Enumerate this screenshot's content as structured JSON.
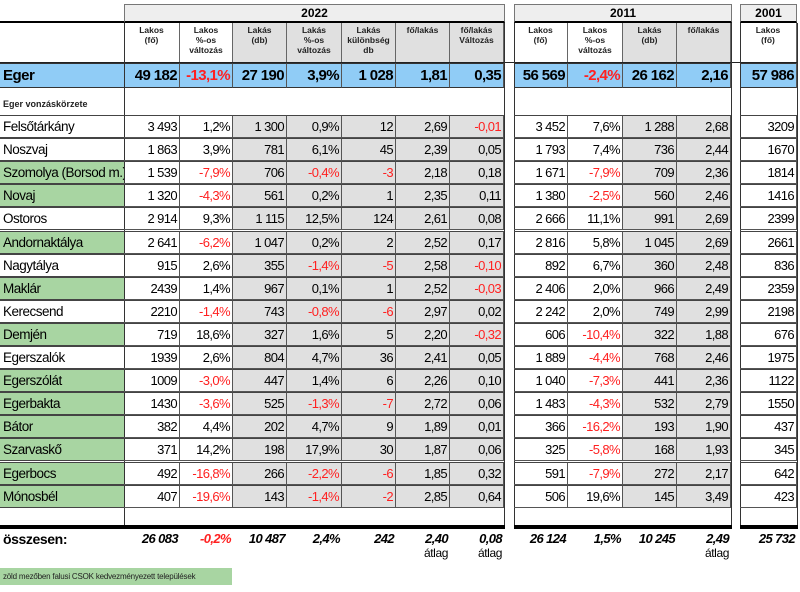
{
  "title_years": {
    "y2022": "2022",
    "y2011": "2011",
    "y2001": "2001"
  },
  "headers_2022": [
    "Lakos\n(fő)",
    "Lakos\n%-os\nváltozás",
    "Lakás\n(db)",
    "Lakás\n%-os\nváltozás",
    "Lakás\nkülönbség\ndb",
    "fő/lakás",
    "fő/lakás\nVáltozás"
  ],
  "headers_2011": [
    "Lakos\n(fő)",
    "Lakos\n%-os\nváltozás",
    "Lakás\n(db)",
    "fő/lakás"
  ],
  "headers_2001": [
    "Lakos\n(fő)"
  ],
  "eger": {
    "name": "Eger",
    "v2022": [
      "49  182",
      "-13,1%",
      "27  190",
      "3,9%",
      "1  028",
      "1,81",
      "0,35"
    ],
    "v2011": [
      "56  569",
      "-2,4%",
      "26  162",
      "2,16"
    ],
    "v2001": [
      "57  986"
    ]
  },
  "section_label": "Eger vonzáskörzete",
  "rows": [
    {
      "name": "Felsőtárkány",
      "green": false,
      "v2022": [
        "3 493",
        "1,2%",
        "1 300",
        "0,9%",
        "12",
        "2,69",
        "-0,01"
      ],
      "v2011": [
        "3 452",
        "7,6%",
        "1 288",
        "2,68"
      ],
      "v2001": [
        "3209"
      ]
    },
    {
      "name": "Noszvaj",
      "green": false,
      "v2022": [
        "1 863",
        "3,9%",
        "781",
        "6,1%",
        "45",
        "2,39",
        "0,05"
      ],
      "v2011": [
        "1 793",
        "7,4%",
        "736",
        "2,44"
      ],
      "v2001": [
        "1670"
      ]
    },
    {
      "name": "Szomolya (Borsod m.)",
      "green": true,
      "v2022": [
        "1 539",
        "-7,9%",
        "706",
        "-0,4%",
        "-3",
        "2,18",
        "0,18"
      ],
      "v2011": [
        "1 671",
        "-7,9%",
        "709",
        "2,36"
      ],
      "v2001": [
        "1814"
      ]
    },
    {
      "name": "Novaj",
      "green": true,
      "v2022": [
        "1 320",
        "-4,3%",
        "561",
        "0,2%",
        "1",
        "2,35",
        "0,11"
      ],
      "v2011": [
        "1 380",
        "-2,5%",
        "560",
        "2,46"
      ],
      "v2001": [
        "1416"
      ]
    },
    {
      "name": "Ostoros",
      "green": false,
      "v2022": [
        "2 914",
        "9,3%",
        "1 115",
        "12,5%",
        "124",
        "2,61",
        "0,08"
      ],
      "v2011": [
        "2 666",
        "11,1%",
        "991",
        "2,69"
      ],
      "v2001": [
        "2399"
      ]
    },
    {
      "name": "Andornaktálya",
      "green": true,
      "v2022": [
        "2 641",
        "-6,2%",
        "1 047",
        "0,2%",
        "2",
        "2,52",
        "0,17"
      ],
      "v2011": [
        "2 816",
        "5,8%",
        "1 045",
        "2,69"
      ],
      "v2001": [
        "2661"
      ]
    },
    {
      "name": "Nagytálya",
      "green": false,
      "v2022": [
        "915",
        "2,6%",
        "355",
        "-1,4%",
        "-5",
        "2,58",
        "-0,10"
      ],
      "v2011": [
        "892",
        "6,7%",
        "360",
        "2,48"
      ],
      "v2001": [
        "836"
      ]
    },
    {
      "name": "Maklár",
      "green": true,
      "v2022": [
        "2439",
        "1,4%",
        "967",
        "0,1%",
        "1",
        "2,52",
        "-0,03"
      ],
      "v2011": [
        "2 406",
        "2,0%",
        "966",
        "2,49"
      ],
      "v2001": [
        "2359"
      ]
    },
    {
      "name": "Kerecsend",
      "green": false,
      "v2022": [
        "2210",
        "-1,4%",
        "743",
        "-0,8%",
        "-6",
        "2,97",
        "0,02"
      ],
      "v2011": [
        "2 242",
        "2,0%",
        "749",
        "2,99"
      ],
      "v2001": [
        "2198"
      ]
    },
    {
      "name": "Demjén",
      "green": true,
      "v2022": [
        "719",
        "18,6%",
        "327",
        "1,6%",
        "5",
        "2,20",
        "-0,32"
      ],
      "v2011": [
        "606",
        "-10,4%",
        "322",
        "1,88"
      ],
      "v2001": [
        "676"
      ]
    },
    {
      "name": "Egerszalók",
      "green": false,
      "v2022": [
        "1939",
        "2,6%",
        "804",
        "4,7%",
        "36",
        "2,41",
        "0,05"
      ],
      "v2011": [
        "1 889",
        "-4,4%",
        "768",
        "2,46"
      ],
      "v2001": [
        "1975"
      ]
    },
    {
      "name": "Egerszólát",
      "green": true,
      "v2022": [
        "1009",
        "-3,0%",
        "447",
        "1,4%",
        "6",
        "2,26",
        "0,10"
      ],
      "v2011": [
        "1 040",
        "-7,3%",
        "441",
        "2,36"
      ],
      "v2001": [
        "1122"
      ]
    },
    {
      "name": "Egerbakta",
      "green": true,
      "v2022": [
        "1430",
        "-3,6%",
        "525",
        "-1,3%",
        "-7",
        "2,72",
        "0,06"
      ],
      "v2011": [
        "1 483",
        "-4,3%",
        "532",
        "2,79"
      ],
      "v2001": [
        "1550"
      ]
    },
    {
      "name": "Bátor",
      "green": true,
      "v2022": [
        "382",
        "4,4%",
        "202",
        "4,7%",
        "9",
        "1,89",
        "0,01"
      ],
      "v2011": [
        "366",
        "-16,2%",
        "193",
        "1,90"
      ],
      "v2001": [
        "437"
      ]
    },
    {
      "name": "Szarvaskő",
      "green": true,
      "v2022": [
        "371",
        "14,2%",
        "198",
        "17,9%",
        "30",
        "1,87",
        "0,06"
      ],
      "v2011": [
        "325",
        "-5,8%",
        "168",
        "1,93"
      ],
      "v2001": [
        "345"
      ]
    },
    {
      "name": "Egerbocs",
      "green": true,
      "v2022": [
        "492",
        "-16,8%",
        "266",
        "-2,2%",
        "-6",
        "1,85",
        "0,32"
      ],
      "v2011": [
        "591",
        "-7,9%",
        "272",
        "2,17"
      ],
      "v2001": [
        "642"
      ]
    },
    {
      "name": "Mónosbél",
      "green": true,
      "v2022": [
        "407",
        "-19,6%",
        "143",
        "-1,4%",
        "-2",
        "2,85",
        "0,64"
      ],
      "v2011": [
        "506",
        "19,6%",
        "145",
        "3,49"
      ],
      "v2001": [
        "423"
      ]
    }
  ],
  "totals": {
    "label": "összesen:",
    "v2022": [
      "26 083",
      "-0,2%",
      "10 487",
      "2,4%",
      "242",
      "2,40",
      "0,08"
    ],
    "v2011": [
      "26 124",
      "1,5%",
      "10 245",
      "2,49"
    ],
    "v2001": [
      "25 732"
    ],
    "avg_label": "átlag"
  },
  "legend_note": "zöld mezőben falusi CSOK kedvezményezett települések",
  "colors": {
    "green": "#a8d5a2",
    "blue": "#90ccf6",
    "gray": "#e0e0e0",
    "red": "#ff2020"
  }
}
